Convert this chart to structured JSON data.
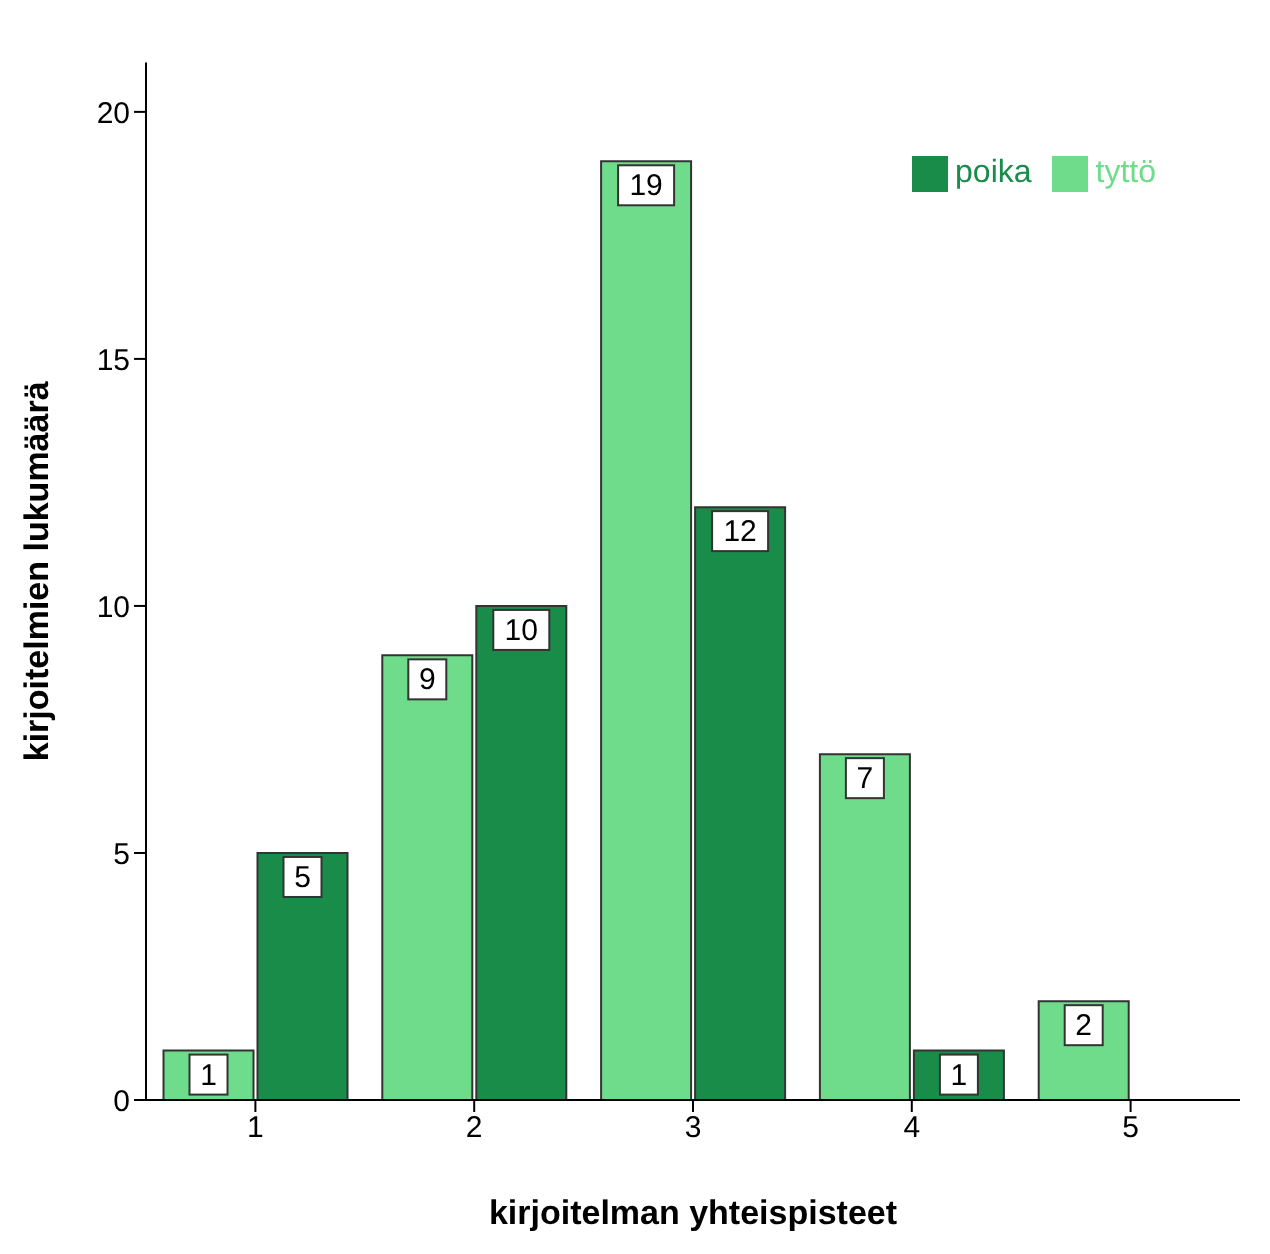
{
  "chart_data": {
    "type": "bar",
    "xlabel": "kirjoitelman yhteispisteet",
    "ylabel": "kirjoitelmien lukumäärä",
    "categories": [
      "1",
      "2",
      "3",
      "4",
      "5"
    ],
    "series": [
      {
        "name": "tyttö",
        "color": "#6fdc8c",
        "values": [
          1,
          9,
          19,
          7,
          2
        ]
      },
      {
        "name": "poika",
        "color": "#198c4a",
        "values": [
          5,
          10,
          12,
          1,
          null
        ]
      }
    ],
    "ylim": [
      0,
      21
    ],
    "yticks": [
      0,
      5,
      10,
      15,
      20
    ],
    "grid": false,
    "legend": "top right",
    "data_labels": true
  }
}
